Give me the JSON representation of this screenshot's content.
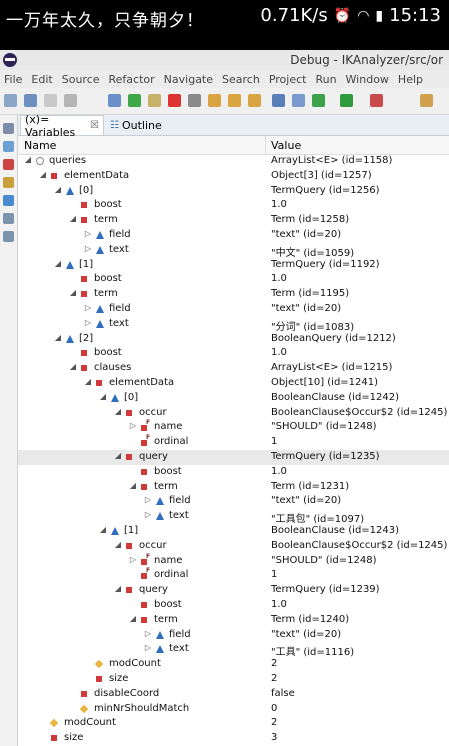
{
  "status_bar": {
    "left_text": "一万年太久，只争朝夕！",
    "speed": "0.71K/s",
    "time": "15:13",
    "icons": [
      "alarm-icon",
      "wifi-icon",
      "signal-icon"
    ]
  },
  "window": {
    "title": "Debug - IKAnalyzer/src/or"
  },
  "menu": [
    "File",
    "Edit",
    "Source",
    "Refactor",
    "Navigate",
    "Search",
    "Project",
    "Run",
    "Window",
    "Help"
  ],
  "tabs": [
    {
      "label": "(x)= Variables",
      "close": "☒",
      "active": true
    },
    {
      "label": "Outline",
      "active": false
    }
  ],
  "columns": {
    "name": "Name",
    "value": "Value"
  },
  "rows": [
    {
      "name": "queries",
      "value": "ArrayList<E>  (id=1158)",
      "indent": 0,
      "twisty": "◢",
      "icon": "circle"
    },
    {
      "name": "elementData",
      "value": "Object[3]  (id=1257)",
      "indent": 1,
      "twisty": "◢",
      "icon": "square"
    },
    {
      "name": "[0]",
      "value": "TermQuery  (id=1256)",
      "indent": 2,
      "twisty": "◢",
      "icon": "tri"
    },
    {
      "name": "boost",
      "value": "1.0",
      "indent": 3,
      "twisty": "",
      "icon": "square"
    },
    {
      "name": "term",
      "value": "Term  (id=1258)",
      "indent": 3,
      "twisty": "◢",
      "icon": "square"
    },
    {
      "name": "field",
      "value": "\"text\" (id=20)",
      "indent": 4,
      "twisty": "▷",
      "icon": "tri"
    },
    {
      "name": "text",
      "value": "\"中文\" (id=1059)",
      "indent": 4,
      "twisty": "▷",
      "icon": "tri"
    },
    {
      "name": "[1]",
      "value": "TermQuery  (id=1192)",
      "indent": 2,
      "twisty": "◢",
      "icon": "tri"
    },
    {
      "name": "boost",
      "value": "1.0",
      "indent": 3,
      "twisty": "",
      "icon": "square"
    },
    {
      "name": "term",
      "value": "Term  (id=1195)",
      "indent": 3,
      "twisty": "◢",
      "icon": "square"
    },
    {
      "name": "field",
      "value": "\"text\" (id=20)",
      "indent": 4,
      "twisty": "▷",
      "icon": "tri"
    },
    {
      "name": "text",
      "value": "\"分词\" (id=1083)",
      "indent": 4,
      "twisty": "▷",
      "icon": "tri"
    },
    {
      "name": "[2]",
      "value": "BooleanQuery  (id=1212)",
      "indent": 2,
      "twisty": "◢",
      "icon": "tri"
    },
    {
      "name": "boost",
      "value": "1.0",
      "indent": 3,
      "twisty": "",
      "icon": "square"
    },
    {
      "name": "clauses",
      "value": "ArrayList<E>  (id=1215)",
      "indent": 3,
      "twisty": "◢",
      "icon": "square"
    },
    {
      "name": "elementData",
      "value": "Object[10]  (id=1241)",
      "indent": 4,
      "twisty": "◢",
      "icon": "square"
    },
    {
      "name": "[0]",
      "value": "BooleanClause  (id=1242)",
      "indent": 5,
      "twisty": "◢",
      "icon": "tri"
    },
    {
      "name": "occur",
      "value": "BooleanClause$Occur$2  (id=1245)",
      "indent": 6,
      "twisty": "◢",
      "icon": "square"
    },
    {
      "name": "name",
      "value": "\"SHOULD\" (id=1248)",
      "indent": 7,
      "twisty": "▷",
      "icon": "sqf"
    },
    {
      "name": "ordinal",
      "value": "1",
      "indent": 7,
      "twisty": "",
      "icon": "sqf"
    },
    {
      "name": "query",
      "value": "TermQuery  (id=1235)",
      "indent": 6,
      "twisty": "◢",
      "icon": "square",
      "highlight": true
    },
    {
      "name": "boost",
      "value": "1.0",
      "indent": 7,
      "twisty": "",
      "icon": "square"
    },
    {
      "name": "term",
      "value": "Term  (id=1231)",
      "indent": 7,
      "twisty": "◢",
      "icon": "square"
    },
    {
      "name": "field",
      "value": "\"text\" (id=20)",
      "indent": 8,
      "twisty": "▷",
      "icon": "tri"
    },
    {
      "name": "text",
      "value": "\"工具包\" (id=1097)",
      "indent": 8,
      "twisty": "▷",
      "icon": "tri"
    },
    {
      "name": "[1]",
      "value": "BooleanClause  (id=1243)",
      "indent": 5,
      "twisty": "◢",
      "icon": "tri"
    },
    {
      "name": "occur",
      "value": "BooleanClause$Occur$2  (id=1245)",
      "indent": 6,
      "twisty": "◢",
      "icon": "square"
    },
    {
      "name": "name",
      "value": "\"SHOULD\" (id=1248)",
      "indent": 7,
      "twisty": "▷",
      "icon": "sqf"
    },
    {
      "name": "ordinal",
      "value": "1",
      "indent": 7,
      "twisty": "",
      "icon": "sqf"
    },
    {
      "name": "query",
      "value": "TermQuery  (id=1239)",
      "indent": 6,
      "twisty": "◢",
      "icon": "square"
    },
    {
      "name": "boost",
      "value": "1.0",
      "indent": 7,
      "twisty": "",
      "icon": "square"
    },
    {
      "name": "term",
      "value": "Term  (id=1240)",
      "indent": 7,
      "twisty": "◢",
      "icon": "square"
    },
    {
      "name": "field",
      "value": "\"text\" (id=20)",
      "indent": 8,
      "twisty": "▷",
      "icon": "tri"
    },
    {
      "name": "text",
      "value": "\"工具\" (id=1116)",
      "indent": 8,
      "twisty": "▷",
      "icon": "tri"
    },
    {
      "name": "modCount",
      "value": "2",
      "indent": 4,
      "twisty": "",
      "icon": "diamond"
    },
    {
      "name": "size",
      "value": "2",
      "indent": 4,
      "twisty": "",
      "icon": "square"
    },
    {
      "name": "disableCoord",
      "value": "false",
      "indent": 3,
      "twisty": "",
      "icon": "square"
    },
    {
      "name": "minNrShouldMatch",
      "value": "0",
      "indent": 3,
      "twisty": "",
      "icon": "diamond"
    },
    {
      "name": "modCount",
      "value": "2",
      "indent": 1,
      "twisty": "",
      "icon": "diamond"
    },
    {
      "name": "size",
      "value": "3",
      "indent": 1,
      "twisty": "",
      "icon": "square"
    }
  ]
}
